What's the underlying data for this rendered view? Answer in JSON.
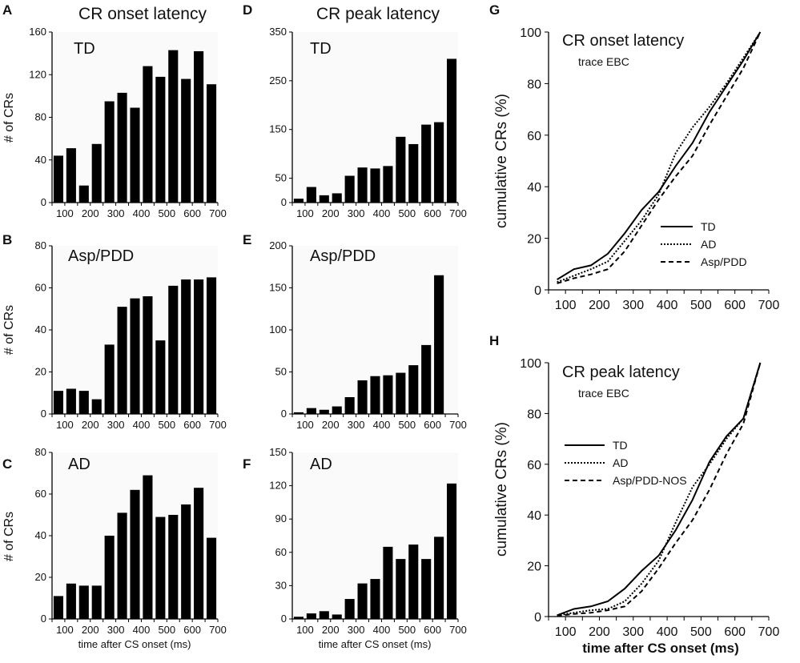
{
  "chart_data": [
    {
      "id": "A",
      "type": "bar",
      "letter": "A",
      "column_title": "CR onset latency",
      "label": "TD",
      "ylabel": "# of CRs",
      "xlabel": "",
      "ylim": [
        0,
        160
      ],
      "yticks": [
        0,
        40,
        80,
        120,
        160
      ],
      "categories": [
        75,
        125,
        175,
        225,
        275,
        325,
        375,
        425,
        475,
        525,
        575,
        625,
        675
      ],
      "xticks": [
        "100",
        "200",
        "300",
        "400",
        "500",
        "600",
        "700"
      ],
      "values": [
        44,
        51,
        16,
        55,
        95,
        103,
        89,
        128,
        118,
        143,
        116,
        142,
        111
      ]
    },
    {
      "id": "B",
      "type": "bar",
      "letter": "B",
      "label": "Asp/PDD",
      "ylabel": "# of CRs",
      "xlabel": "",
      "ylim": [
        0,
        80
      ],
      "yticks": [
        0,
        20,
        40,
        60,
        80
      ],
      "categories": [
        75,
        125,
        175,
        225,
        275,
        325,
        375,
        425,
        475,
        525,
        575,
        625,
        675
      ],
      "xticks": [
        "100",
        "200",
        "300",
        "400",
        "500",
        "600",
        "700"
      ],
      "values": [
        11,
        12,
        11,
        7,
        33,
        51,
        55,
        56,
        35,
        61,
        64,
        64,
        65
      ]
    },
    {
      "id": "C",
      "type": "bar",
      "letter": "C",
      "label": "AD",
      "ylabel": "# of CRs",
      "xlabel": "time after CS onset (ms)",
      "ylim": [
        0,
        80
      ],
      "yticks": [
        0,
        20,
        40,
        60,
        80
      ],
      "categories": [
        75,
        125,
        175,
        225,
        275,
        325,
        375,
        425,
        475,
        525,
        575,
        625,
        675
      ],
      "xticks": [
        "100",
        "200",
        "300",
        "400",
        "500",
        "600",
        "700"
      ],
      "values": [
        11,
        17,
        16,
        16,
        40,
        51,
        62,
        69,
        49,
        50,
        55,
        63,
        39
      ]
    },
    {
      "id": "D",
      "type": "bar",
      "letter": "D",
      "column_title": "CR peak latency",
      "label": "TD",
      "ylabel": "",
      "xlabel": "",
      "ylim": [
        0,
        350
      ],
      "yticks": [
        0,
        50,
        150,
        250,
        350
      ],
      "categories": [
        75,
        125,
        175,
        225,
        275,
        325,
        375,
        425,
        475,
        525,
        575,
        625,
        675
      ],
      "xticks": [
        "100",
        "200",
        "300",
        "400",
        "500",
        "600",
        "700"
      ],
      "values": [
        8,
        32,
        15,
        19,
        55,
        72,
        70,
        75,
        135,
        120,
        160,
        165,
        295
      ]
    },
    {
      "id": "E",
      "type": "bar",
      "letter": "E",
      "label": "Asp/PDD",
      "ylabel": "",
      "xlabel": "",
      "ylim": [
        0,
        200
      ],
      "yticks": [
        0,
        50,
        100,
        150,
        200
      ],
      "categories": [
        75,
        125,
        175,
        225,
        275,
        325,
        375,
        425,
        475,
        525,
        575,
        625,
        675
      ],
      "xticks": [
        "100",
        "200",
        "300",
        "400",
        "500",
        "600",
        "700"
      ],
      "values": [
        2,
        7,
        5,
        9,
        20,
        40,
        45,
        46,
        49,
        58,
        82,
        165,
        0
      ]
    },
    {
      "id": "F",
      "type": "bar",
      "letter": "F",
      "label": "AD",
      "ylabel": "",
      "xlabel": "time after CS onset (ms)",
      "ylim": [
        0,
        150
      ],
      "yticks": [
        0,
        30,
        60,
        90,
        120,
        150
      ],
      "categories": [
        75,
        125,
        175,
        225,
        275,
        325,
        375,
        425,
        475,
        525,
        575,
        625,
        675
      ],
      "xticks": [
        "100",
        "200",
        "300",
        "400",
        "500",
        "600",
        "700"
      ],
      "values": [
        2,
        5,
        7,
        4,
        18,
        32,
        36,
        65,
        54,
        67,
        54,
        74,
        122
      ]
    },
    {
      "id": "G",
      "type": "line",
      "letter": "G",
      "title": "CR onset latency",
      "subtitle": "trace EBC",
      "ylabel": "cumulative CRs (%)",
      "xlabel": "",
      "xlim": [
        50,
        700
      ],
      "ylim": [
        0,
        100
      ],
      "xticks": [
        "100",
        "200",
        "300",
        "400",
        "500",
        "600",
        "700"
      ],
      "yticks": [
        "0",
        "20",
        "40",
        "60",
        "80",
        "100"
      ],
      "legend": [
        "TD",
        "AD",
        "Asp/PDD"
      ],
      "series": [
        {
          "name": "TD",
          "dash": "solid",
          "x": [
            75,
            125,
            175,
            225,
            275,
            325,
            375,
            425,
            475,
            525,
            575,
            625,
            675
          ],
          "y": [
            4,
            8,
            9.5,
            14,
            22,
            31,
            38,
            48,
            57,
            69,
            79,
            89,
            100
          ]
        },
        {
          "name": "AD",
          "dash": "dotted",
          "x": [
            75,
            125,
            175,
            225,
            275,
            325,
            375,
            425,
            475,
            525,
            575,
            625,
            675
          ],
          "y": [
            3,
            5.5,
            8,
            11,
            19,
            27,
            37,
            53,
            63,
            71,
            80,
            90,
            100
          ]
        },
        {
          "name": "Asp/PDD",
          "dash": "dashed",
          "x": [
            75,
            125,
            175,
            225,
            275,
            325,
            375,
            425,
            475,
            525,
            575,
            625,
            675
          ],
          "y": [
            2.5,
            4.5,
            6,
            8,
            15,
            25,
            35,
            44,
            52,
            64,
            75,
            86,
            100
          ]
        }
      ]
    },
    {
      "id": "H",
      "type": "line",
      "letter": "H",
      "title": "CR peak latency",
      "subtitle": "trace EBC",
      "ylabel": "cumulative CRs (%)",
      "xlabel": "time after CS onset (ms)",
      "xlim": [
        50,
        700
      ],
      "ylim": [
        0,
        100
      ],
      "xticks": [
        "100",
        "200",
        "300",
        "400",
        "500",
        "600",
        "700"
      ],
      "yticks": [
        "0",
        "20",
        "40",
        "60",
        "80",
        "100"
      ],
      "legend": [
        "TD",
        "AD",
        "Asp/PDD-NOS"
      ],
      "series": [
        {
          "name": "TD",
          "dash": "solid",
          "x": [
            75,
            125,
            175,
            225,
            275,
            325,
            375,
            425,
            475,
            525,
            575,
            625,
            675
          ],
          "y": [
            0.5,
            3,
            4,
            6,
            11,
            18,
            24,
            34,
            46,
            61,
            71,
            78,
            100
          ]
        },
        {
          "name": "AD",
          "dash": "dotted",
          "x": [
            75,
            125,
            175,
            225,
            275,
            325,
            375,
            425,
            475,
            525,
            575,
            625,
            675
          ],
          "y": [
            0.5,
            1.5,
            2.5,
            3,
            6,
            13,
            22,
            37,
            51,
            60,
            70,
            78,
            100
          ]
        },
        {
          "name": "Asp/PDD-NOS",
          "dash": "dashed",
          "x": [
            75,
            125,
            175,
            225,
            275,
            325,
            375,
            425,
            475,
            525,
            575,
            625,
            675
          ],
          "y": [
            0.3,
            1,
            1.5,
            2.5,
            4,
            10,
            19,
            29,
            38,
            50,
            64,
            76,
            100
          ]
        }
      ]
    }
  ]
}
